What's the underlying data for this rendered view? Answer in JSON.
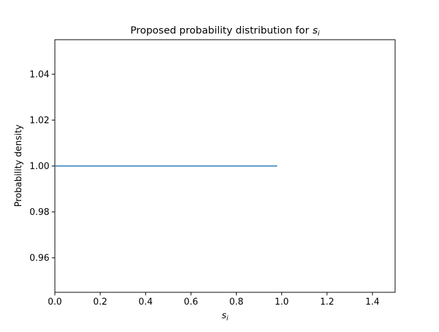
{
  "chart_data": {
    "type": "line",
    "title": "Proposed probability distribution for",
    "title_math": {
      "base": "s",
      "sub": "i"
    },
    "xlabel_math": {
      "base": "s",
      "sub": "i"
    },
    "ylabel": "Probability density",
    "xlim": [
      0.0,
      1.5
    ],
    "ylim": [
      0.945,
      1.055
    ],
    "x_ticks": [
      0.0,
      0.2,
      0.4,
      0.6,
      0.8,
      1.0,
      1.2,
      1.4
    ],
    "x_tick_labels": [
      "0.0",
      "0.2",
      "0.4",
      "0.6",
      "0.8",
      "1.0",
      "1.2",
      "1.4"
    ],
    "y_ticks": [
      0.96,
      0.98,
      1.0,
      1.02,
      1.04
    ],
    "y_tick_labels": [
      "0.96",
      "0.98",
      "1.00",
      "1.02",
      "1.04"
    ],
    "grid": false,
    "series": [
      {
        "color": "#1f77b4",
        "x": [
          0.0,
          0.98
        ],
        "y": [
          1.0,
          1.0
        ]
      }
    ]
  }
}
